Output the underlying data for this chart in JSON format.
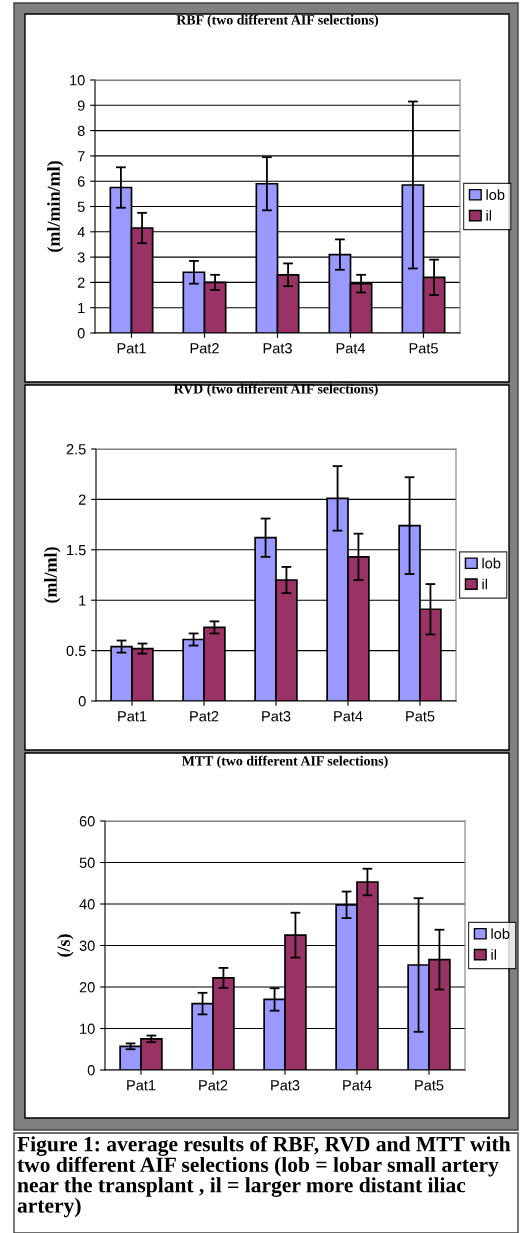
{
  "chart_data": [
    {
      "type": "bar",
      "title": "RBF (two different AIF selections)",
      "ylabel": "(ml/min/ml)",
      "categories": [
        "Pat1",
        "Pat2",
        "Pat3",
        "Pat4",
        "Pat5"
      ],
      "series": [
        {
          "name": "lob",
          "color": "#9999ff",
          "values": [
            5.75,
            2.4,
            5.9,
            3.1,
            5.85
          ],
          "errors": [
            0.8,
            0.45,
            1.05,
            0.6,
            3.3
          ]
        },
        {
          "name": "il",
          "color": "#993366",
          "values": [
            4.15,
            2.0,
            2.3,
            1.95,
            2.2
          ],
          "errors": [
            0.6,
            0.3,
            0.45,
            0.35,
            0.7
          ]
        }
      ],
      "ylim": [
        0,
        10
      ],
      "yticks": [
        0,
        1,
        2,
        3,
        4,
        5,
        6,
        7,
        8,
        9,
        10
      ],
      "grid": "y",
      "legend": "right"
    },
    {
      "type": "bar",
      "title": "RVD (two different AIF selections)",
      "ylabel": "(ml/ml)",
      "categories": [
        "Pat1",
        "Pat2",
        "Pat3",
        "Pat4",
        "Pat5"
      ],
      "series": [
        {
          "name": "lob",
          "color": "#9999ff",
          "values": [
            0.54,
            0.61,
            1.62,
            2.01,
            1.74
          ],
          "errors": [
            0.06,
            0.06,
            0.19,
            0.32,
            0.48
          ]
        },
        {
          "name": "il",
          "color": "#993366",
          "values": [
            0.52,
            0.73,
            1.2,
            1.43,
            0.91
          ],
          "errors": [
            0.05,
            0.06,
            0.13,
            0.23,
            0.25
          ]
        }
      ],
      "ylim": [
        0,
        2.5
      ],
      "yticks": [
        0,
        0.5,
        1,
        1.5,
        2,
        2.5
      ],
      "grid": "y",
      "legend": "right"
    },
    {
      "type": "bar",
      "title": "MTT (two different AIF selections)",
      "ylabel": "(/s)",
      "categories": [
        "Pat1",
        "Pat2",
        "Pat3",
        "Pat4",
        "Pat5"
      ],
      "series": [
        {
          "name": "lob",
          "color": "#9999ff",
          "values": [
            5.7,
            16,
            17,
            39.8,
            25.3
          ],
          "errors": [
            0.7,
            2.6,
            2.7,
            3.2,
            16.1
          ]
        },
        {
          "name": "il",
          "color": "#993366",
          "values": [
            7.5,
            22.2,
            32.5,
            45.3,
            26.6
          ],
          "errors": [
            0.8,
            2.4,
            5.4,
            3.2,
            7.2
          ]
        }
      ],
      "ylim": [
        0,
        60
      ],
      "yticks": [
        0,
        10,
        20,
        30,
        40,
        50,
        60
      ],
      "grid": "y",
      "legend": "right",
      "annotations": [
        "Figure 1: average results of RBF, RVD and MTT with two different AIF selections (lob = lobar small artery near the transplant , il = larger more distant iliac artery)"
      ]
    }
  ]
}
